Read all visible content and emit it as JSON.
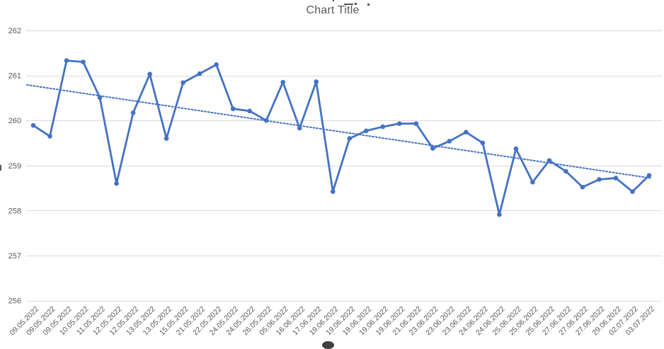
{
  "chart_data": {
    "type": "line",
    "title": "Chart Title",
    "categories": [
      "09.05.2022",
      "09.05.2022",
      "09.05.2022",
      "10.05.2022",
      "11.05.2022",
      "12.05.2022",
      "12.05.2022",
      "13.05.2022",
      "13.05.2022",
      "15.05.2022",
      "21.05.2022",
      "22.05.2022",
      "24.05.2022",
      "24.05.2022",
      "26.05.2022",
      "05.06.2022",
      "16.06.2022",
      "17.06.2022",
      "19.06.2022",
      "19.06.2022",
      "19.06.2022",
      "19.06.2022",
      "19.06.2022",
      "21.06.2022",
      "23.06.2022",
      "23.06.2022",
      "23.06.2022",
      "24.06.2022",
      "24.06.2022",
      "25.06.2022",
      "25.06.2022",
      "25.06.2022",
      "27.06.2022",
      "27.06.2022",
      "27.06.2022",
      "29.06.2022",
      "02.07.2022",
      "03.07.2022"
    ],
    "series": [
      {
        "color": "#4472C4",
        "marker": "circle",
        "values": [
          259.89,
          259.65,
          261.33,
          261.3,
          260.51,
          258.6,
          260.17,
          261.03,
          259.6,
          260.84,
          261.04,
          261.24,
          260.26,
          260.21,
          260.0,
          260.85,
          259.83,
          260.86,
          258.42,
          259.6,
          259.77,
          259.86,
          259.93,
          259.93,
          259.38,
          259.54,
          259.74,
          259.5,
          257.91,
          259.37,
          258.63,
          259.11,
          258.87,
          258.52,
          258.69,
          258.72,
          258.42,
          258.78
        ]
      }
    ],
    "trendline": {
      "type": "linear",
      "style": "dotted",
      "color": "#4472C4",
      "start_value": 260.79,
      "end_value": 258.72
    },
    "y_axis": {
      "min": 256,
      "max": 262,
      "tick_step": 1,
      "ticks": [
        262,
        261,
        260,
        259,
        258,
        257,
        256
      ],
      "tick_labels": [
        "262",
        "261",
        "260",
        "259",
        "258",
        "257",
        "256"
      ]
    },
    "x_axis": {
      "label_rotation_deg": -45
    },
    "grid": true,
    "legend": "none",
    "colors": {
      "series": "#4472C4",
      "trendline": "#4472C4",
      "gridline": "#D9D9D9",
      "axis_text": "#595959",
      "title_text": "#595959",
      "background": "#FFFFFF"
    }
  }
}
